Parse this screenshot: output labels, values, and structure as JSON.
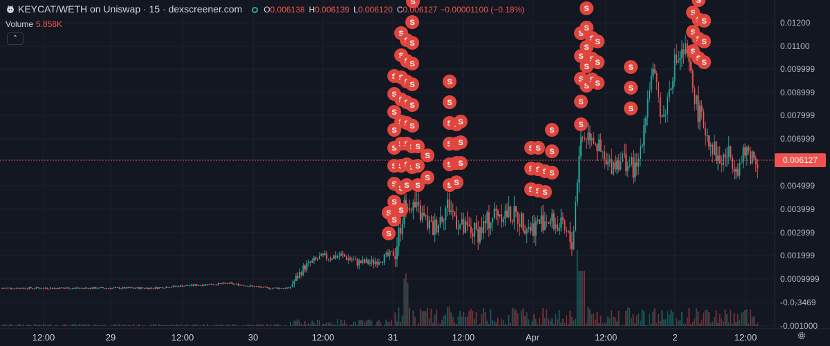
{
  "header": {
    "symbol": "KEYCAT/WETH on Uniswap · 15 · dexscreener.com",
    "o_label": "O",
    "o_value": "0.006138",
    "h_label": "H",
    "h_value": "0.006139",
    "l_label": "L",
    "l_value": "0.006120",
    "c_label": "C",
    "c_value": "0.006127",
    "change": "−0.00001100 (−0.18%)"
  },
  "volume": {
    "label": "Volume",
    "value": "5.858K"
  },
  "colors": {
    "up": "#26a69a",
    "down": "#ef5350",
    "background": "#131722",
    "sell_marker": "#e0463e"
  },
  "icons": [
    "keycat-logo-icon",
    "status-dot-icon",
    "chevron-up-icon",
    "gear-icon"
  ],
  "chart_data": {
    "type": "candlestick",
    "price_axis_ticks": [
      "0.01200",
      "0.01100",
      "0.009999",
      "0.008999",
      "0.007999",
      "0.006999",
      "0.004999",
      "0.003999",
      "0.002999",
      "0.001999",
      "0.0009999",
      "-0.0₇3469",
      "-0.001000"
    ],
    "x_axis_ticks": [
      "12:00",
      "29",
      "12:00",
      "30",
      "12:00",
      "31",
      "12:00",
      "Apr",
      "12:00",
      "2",
      "12:00"
    ],
    "last_price_label": "0.006127",
    "marker_label": "S",
    "price_path": [
      [
        0.0,
        0.0006
      ],
      [
        0.1,
        0.0006
      ],
      [
        0.2,
        0.0006
      ],
      [
        0.24,
        0.0007
      ],
      [
        0.3,
        0.0008
      ],
      [
        0.35,
        0.0006
      ],
      [
        0.38,
        0.0006
      ],
      [
        0.4,
        0.0015
      ],
      [
        0.42,
        0.0019
      ],
      [
        0.45,
        0.002
      ],
      [
        0.47,
        0.0017
      ],
      [
        0.49,
        0.0017
      ],
      [
        0.52,
        0.0021
      ],
      [
        0.535,
        0.0045
      ],
      [
        0.55,
        0.0039
      ],
      [
        0.57,
        0.0031
      ],
      [
        0.59,
        0.0042
      ],
      [
        0.61,
        0.0031
      ],
      [
        0.63,
        0.003
      ],
      [
        0.655,
        0.0039
      ],
      [
        0.68,
        0.0037
      ],
      [
        0.7,
        0.0032
      ],
      [
        0.72,
        0.0036
      ],
      [
        0.74,
        0.0032
      ],
      [
        0.755,
        0.0025
      ],
      [
        0.765,
        0.007
      ],
      [
        0.78,
        0.0073
      ],
      [
        0.8,
        0.0058
      ],
      [
        0.82,
        0.0062
      ],
      [
        0.84,
        0.0056
      ],
      [
        0.86,
        0.01
      ],
      [
        0.875,
        0.0078
      ],
      [
        0.89,
        0.0103
      ],
      [
        0.905,
        0.0108
      ],
      [
        0.92,
        0.0083
      ],
      [
        0.935,
        0.0071
      ],
      [
        0.95,
        0.006
      ],
      [
        0.96,
        0.0064
      ],
      [
        0.975,
        0.0058
      ],
      [
        0.985,
        0.0065
      ],
      [
        1.0,
        0.0061
      ]
    ]
  }
}
